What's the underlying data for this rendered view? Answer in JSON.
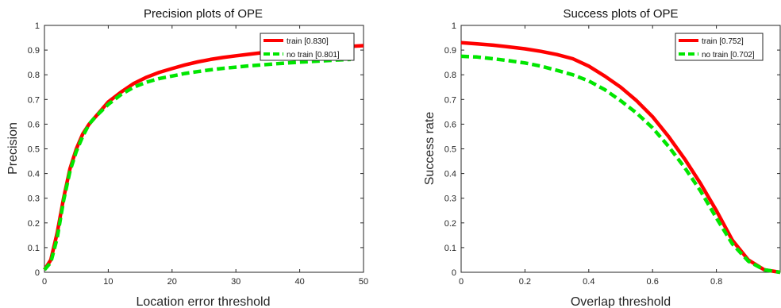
{
  "chart_data": [
    {
      "type": "line",
      "title": "Precision plots of OPE",
      "xlabel": "Location error threshold",
      "ylabel": "Precision",
      "xlim": [
        0,
        50
      ],
      "ylim": [
        0,
        1
      ],
      "xticks": [
        "0",
        "10",
        "20",
        "30",
        "40",
        "50"
      ],
      "yticks": [
        "0",
        "0.1",
        "0.2",
        "0.3",
        "0.4",
        "0.5",
        "0.6",
        "0.7",
        "0.8",
        "0.9",
        "1"
      ],
      "grid": false,
      "legend_position": "top-right",
      "series": [
        {
          "name": "train [0.830]",
          "color": "#ff0000",
          "style": "solid",
          "x": [
            0,
            1,
            2,
            3,
            4,
            5,
            6,
            7,
            8,
            10,
            12,
            14,
            16,
            18,
            20,
            22,
            24,
            26,
            28,
            30,
            32,
            34,
            36,
            38,
            40,
            42,
            44,
            46,
            48,
            50
          ],
          "y": [
            0.01,
            0.05,
            0.16,
            0.3,
            0.42,
            0.5,
            0.56,
            0.6,
            0.63,
            0.69,
            0.73,
            0.765,
            0.79,
            0.81,
            0.825,
            0.84,
            0.852,
            0.862,
            0.87,
            0.877,
            0.883,
            0.889,
            0.894,
            0.898,
            0.902,
            0.906,
            0.909,
            0.912,
            0.915,
            0.918
          ]
        },
        {
          "name": "no train [0.801]",
          "color": "#00e600",
          "style": "dashed",
          "x": [
            0,
            1,
            2,
            3,
            4,
            5,
            6,
            7,
            8,
            10,
            12,
            14,
            16,
            18,
            20,
            22,
            24,
            26,
            28,
            30,
            32,
            34,
            36,
            38,
            40,
            42,
            44,
            46,
            48
          ],
          "y": [
            0.01,
            0.04,
            0.14,
            0.29,
            0.41,
            0.49,
            0.55,
            0.6,
            0.63,
            0.68,
            0.72,
            0.75,
            0.77,
            0.785,
            0.795,
            0.805,
            0.813,
            0.82,
            0.826,
            0.831,
            0.836,
            0.84,
            0.844,
            0.848,
            0.851,
            0.854,
            0.857,
            0.86,
            0.862
          ]
        }
      ]
    },
    {
      "type": "line",
      "title": "Success plots of OPE",
      "xlabel": "Overlap threshold",
      "ylabel": "Success rate",
      "xlim": [
        0,
        1
      ],
      "ylim": [
        0,
        1
      ],
      "xticks": [
        "0",
        "0.2",
        "0.4",
        "0.6",
        "0.8"
      ],
      "yticks": [
        "0",
        "0.1",
        "0.2",
        "0.3",
        "0.4",
        "0.5",
        "0.6",
        "0.7",
        "0.8",
        "0.9",
        "1"
      ],
      "grid": false,
      "legend_position": "top-right",
      "series": [
        {
          "name": "train [0.752]",
          "color": "#ff0000",
          "style": "solid",
          "x": [
            0,
            0.05,
            0.1,
            0.15,
            0.2,
            0.25,
            0.3,
            0.35,
            0.4,
            0.45,
            0.5,
            0.55,
            0.6,
            0.65,
            0.7,
            0.75,
            0.8,
            0.85,
            0.9,
            0.95,
            1
          ],
          "y": [
            0.93,
            0.925,
            0.92,
            0.913,
            0.905,
            0.895,
            0.882,
            0.865,
            0.835,
            0.795,
            0.75,
            0.695,
            0.63,
            0.55,
            0.46,
            0.36,
            0.25,
            0.13,
            0.05,
            0.01,
            0.0
          ]
        },
        {
          "name": "no train [0.702]",
          "color": "#00e600",
          "style": "dashed",
          "x": [
            0,
            0.05,
            0.1,
            0.15,
            0.2,
            0.25,
            0.3,
            0.35,
            0.4,
            0.45,
            0.5,
            0.55,
            0.6,
            0.65,
            0.7,
            0.75,
            0.8,
            0.85,
            0.9,
            0.95,
            1
          ],
          "y": [
            0.875,
            0.872,
            0.865,
            0.857,
            0.848,
            0.835,
            0.818,
            0.8,
            0.775,
            0.74,
            0.695,
            0.645,
            0.585,
            0.51,
            0.425,
            0.33,
            0.22,
            0.115,
            0.045,
            0.01,
            0.0
          ]
        }
      ]
    }
  ]
}
